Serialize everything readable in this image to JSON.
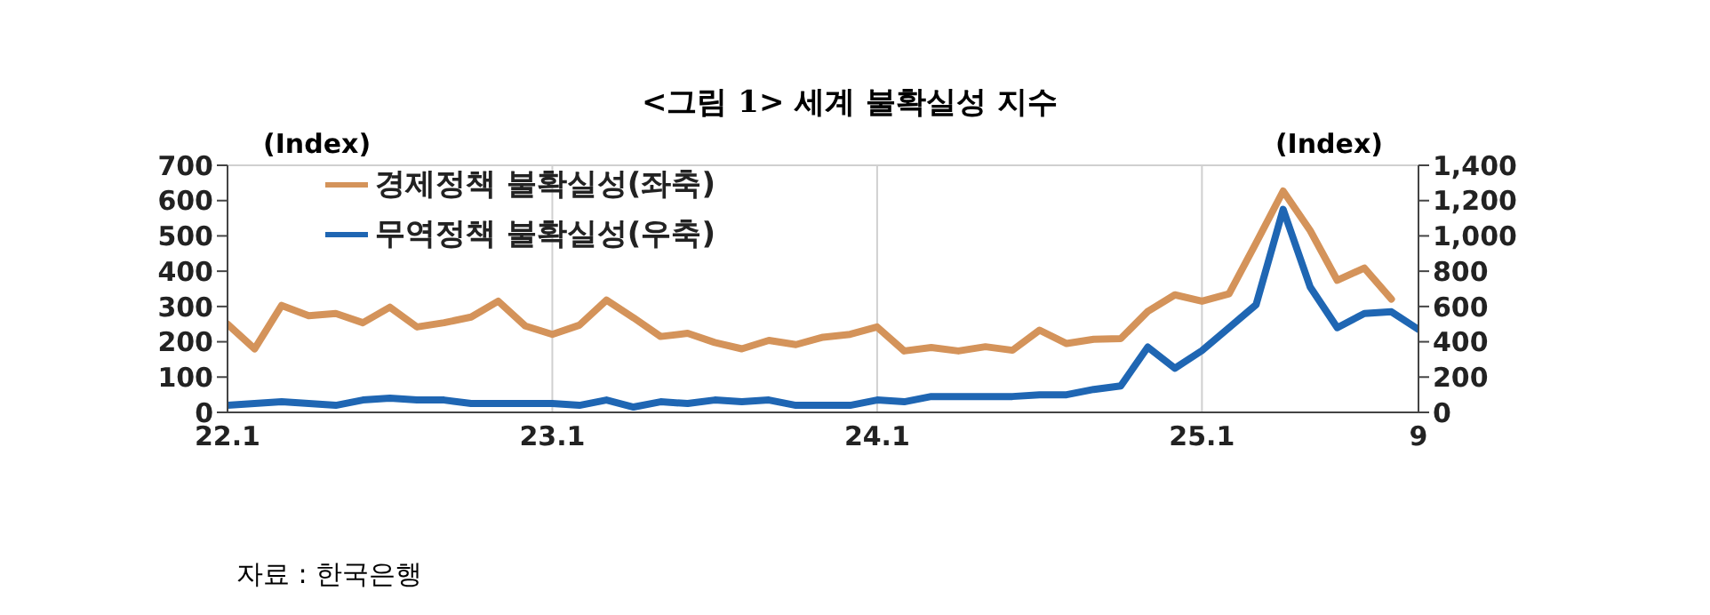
{
  "chart_data": {
    "type": "line",
    "title": "<그림 1> 세계 불확실성 지수",
    "ylabel": "(Index)",
    "y2label": "(Index)",
    "annotations": [
      "자료 : 한국은행"
    ],
    "categories": [
      "22.1",
      null,
      null,
      null,
      null,
      null,
      null,
      null,
      null,
      null,
      null,
      null,
      "23.1",
      null,
      null,
      null,
      null,
      null,
      null,
      null,
      null,
      null,
      null,
      null,
      "24.1",
      null,
      null,
      null,
      null,
      null,
      null,
      null,
      null,
      null,
      null,
      null,
      "25.1",
      null,
      null,
      null,
      null,
      null,
      null,
      null,
      "9"
    ],
    "series": [
      {
        "name": "경제정책 불확실성(좌축)",
        "color": "#d4935a",
        "values": [
          250,
          180,
          303,
          274,
          280,
          254,
          298,
          242,
          254,
          270,
          315,
          245,
          221,
          247,
          318,
          268,
          215,
          224,
          198,
          180,
          204,
          192,
          213,
          221,
          242,
          174,
          184,
          174,
          186,
          176,
          233,
          195,
          207,
          209,
          286,
          333,
          315,
          336,
          480,
          627,
          515,
          374,
          409,
          321,
          null
        ]
      },
      {
        "name": "무역정책 불확실성(우축)",
        "color": "#1f66b3",
        "axis": "y2",
        "values": [
          40,
          50,
          60,
          50,
          40,
          70,
          80,
          70,
          70,
          50,
          50,
          50,
          50,
          40,
          70,
          30,
          60,
          50,
          70,
          60,
          70,
          40,
          40,
          40,
          70,
          60,
          90,
          90,
          90,
          90,
          100,
          100,
          130,
          150,
          370,
          250,
          350,
          480,
          610,
          1150,
          710,
          480,
          560,
          570,
          470
        ]
      }
    ],
    "ylim": [
      0,
      700
    ],
    "yticks": [
      0,
      100,
      200,
      300,
      400,
      500,
      600,
      700
    ],
    "y2lim": [
      0,
      1400
    ],
    "y2ticks": [
      0,
      200,
      400,
      600,
      800,
      {
        "value": 1000,
        "label": "1,000"
      },
      {
        "value": 1200,
        "label": "1,200"
      },
      {
        "value": 1400,
        "label": "1,400"
      }
    ],
    "grid": true,
    "legend": "top left",
    "marker": "none",
    "line_style": "solid"
  }
}
